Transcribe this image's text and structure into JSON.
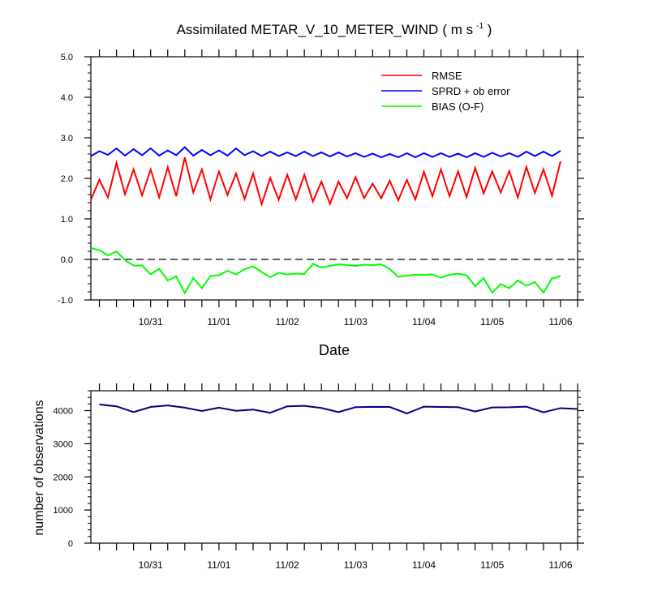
{
  "chart_data": [
    {
      "type": "line",
      "title": "Assimilated METAR_V_10_METER_WIND",
      "title_units": "( m s",
      "title_sup": "-1",
      "title_close": " )",
      "xlabel": "Date",
      "ylabel": "",
      "xlim": [
        "10/30 03:00",
        "11/06 06:00"
      ],
      "ylim": [
        -1.0,
        5.0
      ],
      "yticks": [
        "-1.0",
        "0.0",
        "1.0",
        "2.0",
        "3.0",
        "4.0",
        "5.0"
      ],
      "xticks": [
        "10/31",
        "11/01",
        "11/02",
        "11/03",
        "11/04",
        "11/05",
        "11/06"
      ],
      "grid": false,
      "zero_line": "dashed",
      "legend": "top-right",
      "x_step_hours": 3,
      "series": [
        {
          "name": "RMSE",
          "color": "#ff0000",
          "values": [
            1.47,
            1.97,
            1.53,
            2.38,
            1.61,
            2.22,
            1.58,
            2.22,
            1.53,
            2.27,
            1.56,
            2.52,
            1.65,
            2.22,
            1.48,
            2.17,
            1.59,
            2.12,
            1.49,
            2.12,
            1.36,
            2.01,
            1.47,
            2.09,
            1.48,
            2.09,
            1.43,
            1.92,
            1.37,
            1.92,
            1.51,
            2.03,
            1.51,
            1.87,
            1.51,
            1.94,
            1.46,
            1.96,
            1.48,
            2.16,
            1.56,
            2.22,
            1.56,
            2.17,
            1.54,
            2.26,
            1.63,
            2.17,
            1.65,
            2.18,
            1.53,
            2.28,
            1.64,
            2.22,
            1.57,
            2.42
          ]
        },
        {
          "name": "SPRD + ob error",
          "color": "#0000ff",
          "values": [
            2.55,
            2.67,
            2.58,
            2.74,
            2.56,
            2.72,
            2.57,
            2.74,
            2.56,
            2.69,
            2.57,
            2.77,
            2.56,
            2.7,
            2.57,
            2.69,
            2.56,
            2.74,
            2.57,
            2.67,
            2.55,
            2.66,
            2.55,
            2.64,
            2.55,
            2.66,
            2.55,
            2.64,
            2.54,
            2.64,
            2.54,
            2.62,
            2.53,
            2.61,
            2.52,
            2.6,
            2.52,
            2.62,
            2.52,
            2.62,
            2.53,
            2.62,
            2.53,
            2.61,
            2.52,
            2.62,
            2.53,
            2.63,
            2.54,
            2.62,
            2.53,
            2.66,
            2.55,
            2.66,
            2.55,
            2.68
          ]
        },
        {
          "name": "BIAS (O-F)",
          "color": "#00ff00",
          "values": [
            0.28,
            0.23,
            0.1,
            0.2,
            -0.02,
            -0.15,
            -0.15,
            -0.37,
            -0.23,
            -0.52,
            -0.42,
            -0.83,
            -0.46,
            -0.71,
            -0.41,
            -0.39,
            -0.28,
            -0.37,
            -0.24,
            -0.17,
            -0.31,
            -0.44,
            -0.33,
            -0.37,
            -0.35,
            -0.36,
            -0.11,
            -0.2,
            -0.16,
            -0.12,
            -0.14,
            -0.16,
            -0.13,
            -0.14,
            -0.12,
            -0.24,
            -0.43,
            -0.4,
            -0.38,
            -0.38,
            -0.37,
            -0.45,
            -0.38,
            -0.35,
            -0.39,
            -0.66,
            -0.46,
            -0.82,
            -0.61,
            -0.71,
            -0.52,
            -0.65,
            -0.56,
            -0.82,
            -0.47,
            -0.41
          ]
        }
      ]
    },
    {
      "type": "line",
      "title": "",
      "xlabel": "",
      "ylabel": "number of observations",
      "ylim": [
        0,
        4600
      ],
      "yticks": [
        "0",
        "1000",
        "2000",
        "3000",
        "4000"
      ],
      "xticks": [
        "10/31",
        "11/01",
        "11/02",
        "11/03",
        "11/04",
        "11/05",
        "11/06"
      ],
      "grid": false,
      "series": [
        {
          "name": "",
          "color": "#000080",
          "values": [
            4185,
            4130,
            3955,
            4110,
            4155,
            4090,
            3990,
            4090,
            3995,
            4030,
            3935,
            4130,
            4145,
            4080,
            3955,
            4105,
            4115,
            4110,
            3915,
            4120,
            4110,
            4105,
            3975,
            4095,
            4100,
            4120,
            3950,
            4075,
            4050
          ]
        }
      ]
    }
  ]
}
